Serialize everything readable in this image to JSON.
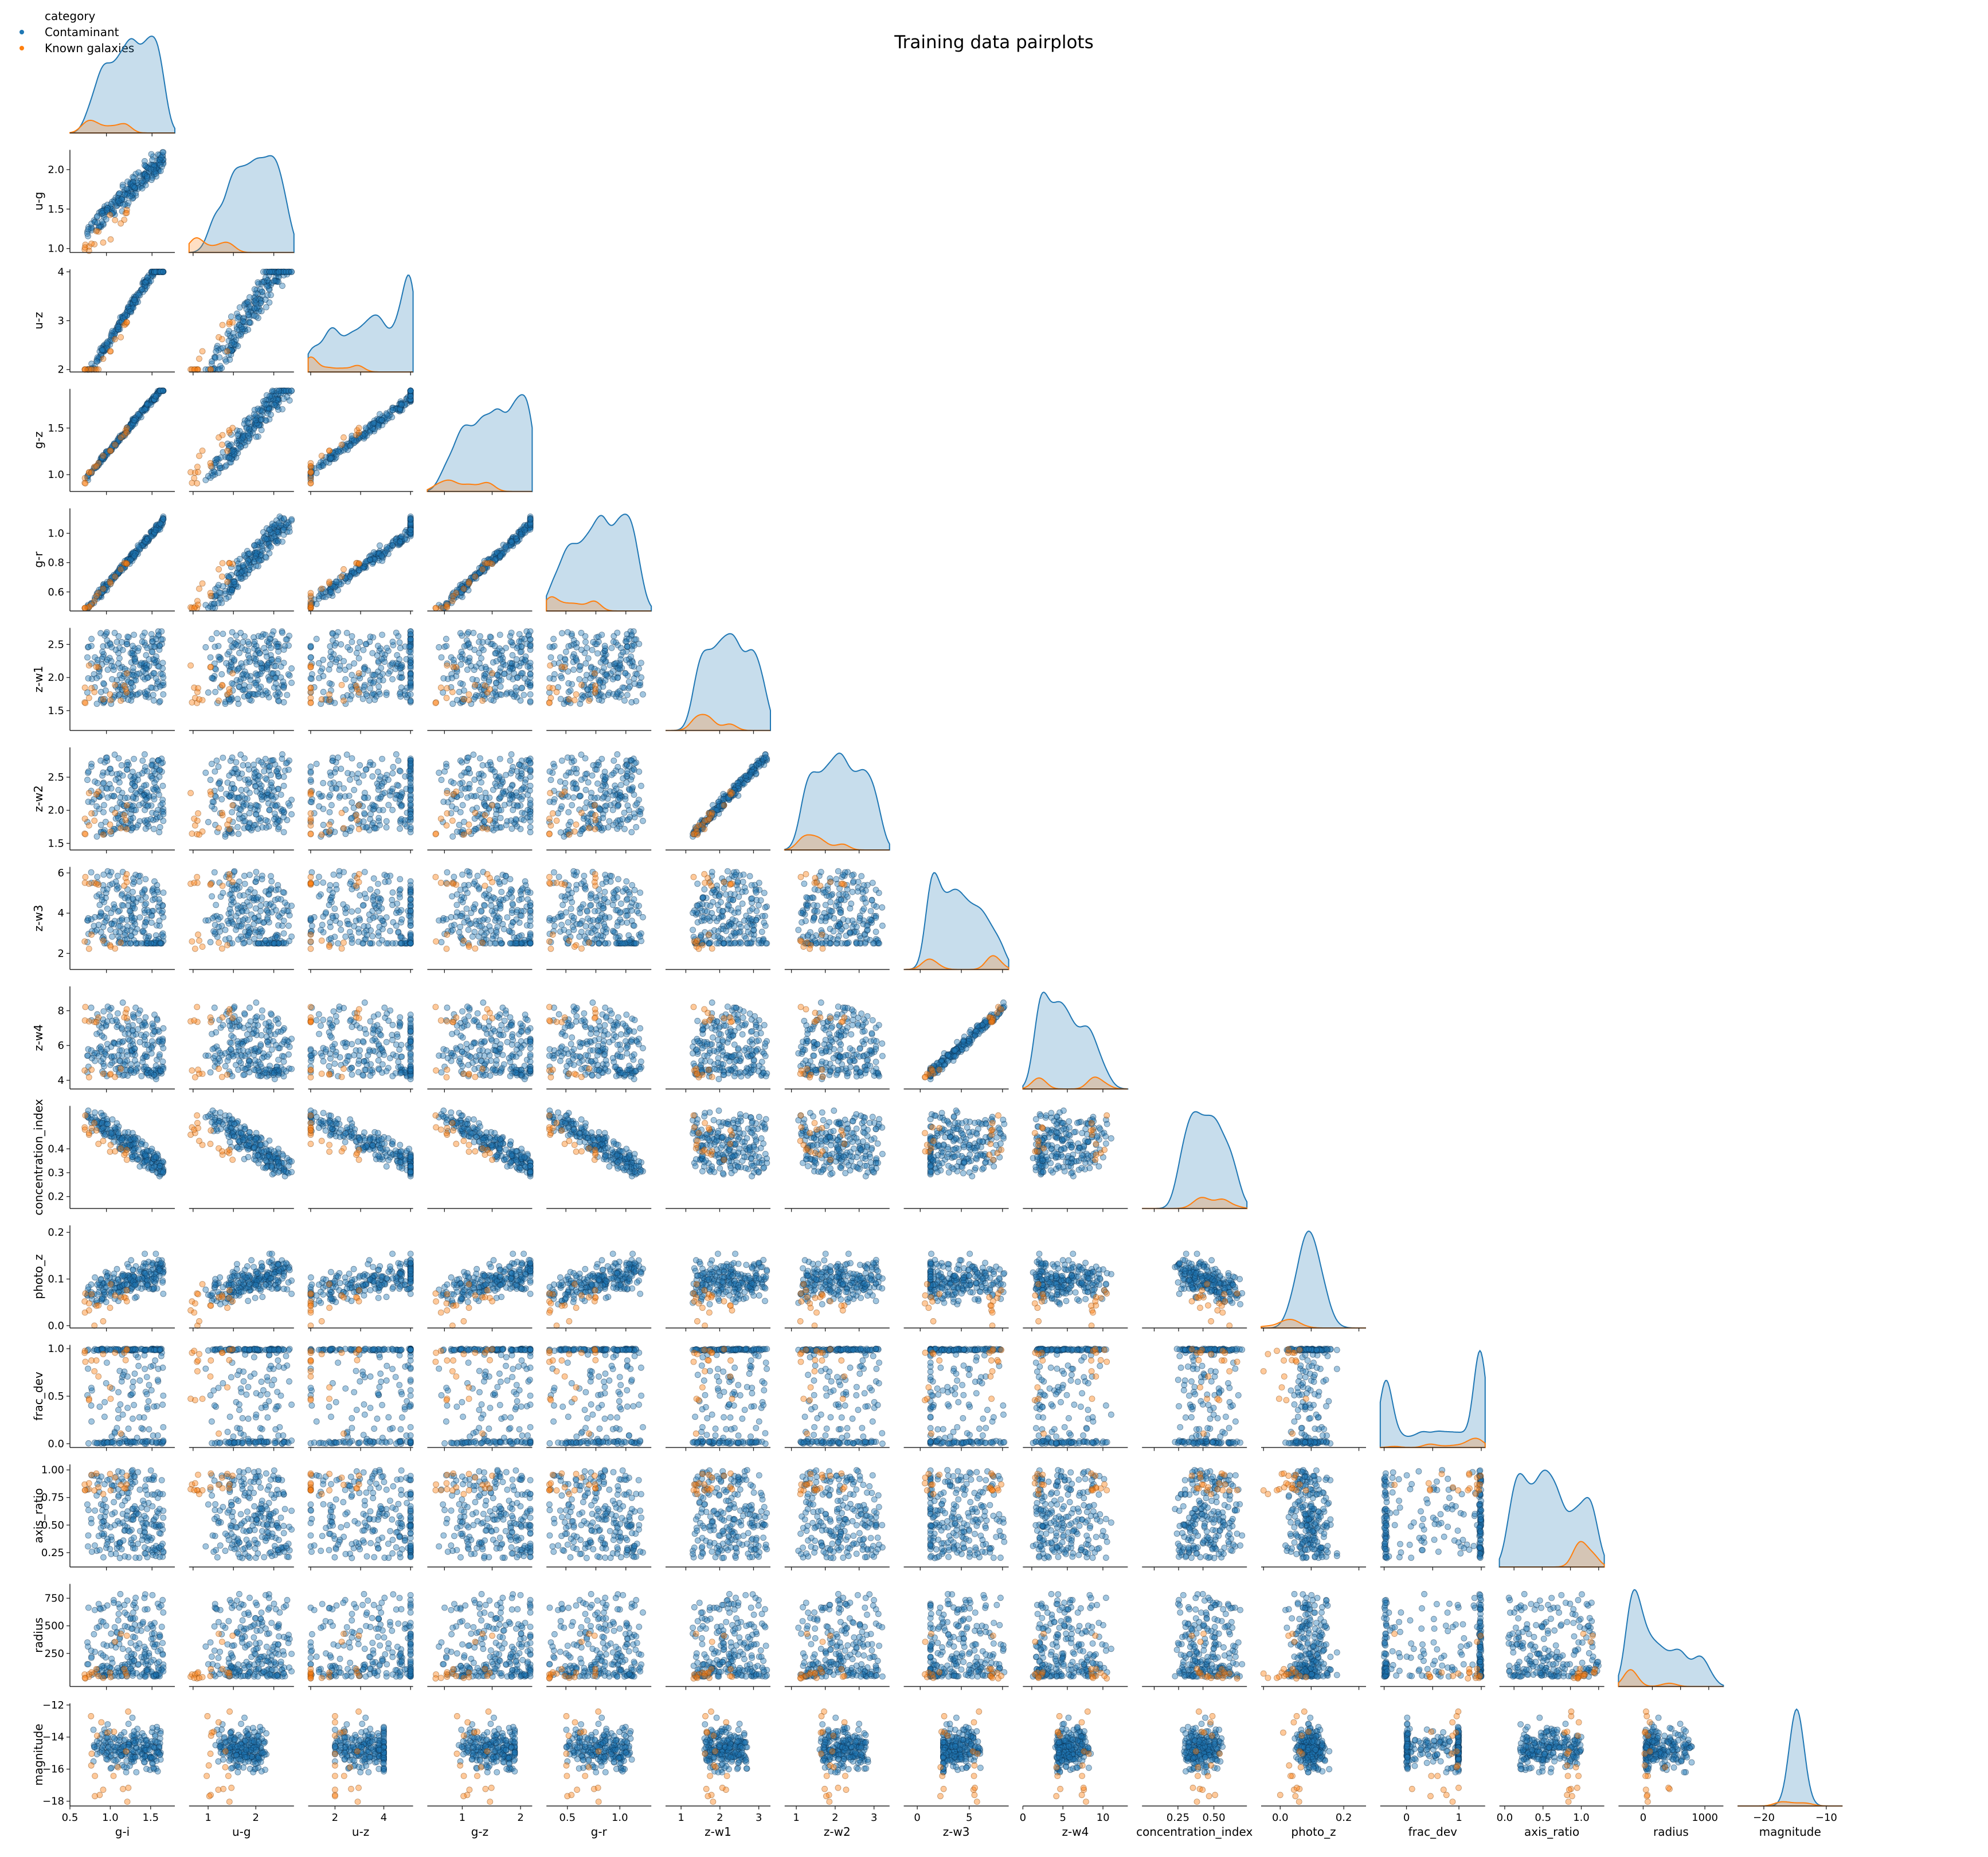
{
  "chart_data": {
    "type": "pairplot",
    "title": "Training data pairplots",
    "legend": {
      "title": "category",
      "placement": "top-left",
      "entries": [
        {
          "label": "Contaminant",
          "color": "#1f77b4"
        },
        {
          "label": "Known galaxies",
          "color": "#ff7f0e"
        }
      ]
    },
    "variables": [
      {
        "name": "g-i",
        "range": [
          0.6,
          1.75
        ],
        "ticks": [
          0.5,
          1.0,
          1.5
        ],
        "tick_labels": [
          "0.5",
          "1.0",
          "1.5"
        ]
      },
      {
        "name": "u-g",
        "range": [
          0.95,
          2.25
        ],
        "ticks": [
          1.0,
          1.5,
          2.0
        ],
        "tick_labels": [
          "1.0",
          "1.5",
          "2.0"
        ]
      },
      {
        "name": "u-z",
        "range": [
          1.95,
          4.05
        ],
        "ticks": [
          2,
          3,
          4
        ],
        "tick_labels": [
          "2",
          "3",
          "4"
        ]
      },
      {
        "name": "g-z",
        "range": [
          0.82,
          1.92
        ],
        "ticks": [
          1.0,
          1.5
        ],
        "tick_labels": [
          "1.0",
          "1.5"
        ]
      },
      {
        "name": "g-r",
        "range": [
          0.47,
          1.17
        ],
        "ticks": [
          0.6,
          0.8,
          1.0
        ],
        "tick_labels": [
          "0.6",
          "0.8",
          "1.0"
        ]
      },
      {
        "name": "z-w1",
        "range": [
          1.2,
          2.75
        ],
        "ticks": [
          1.5,
          2.0,
          2.5
        ],
        "tick_labels": [
          "1.5",
          "2.0",
          "2.5"
        ]
      },
      {
        "name": "z-w2",
        "range": [
          1.4,
          2.95
        ],
        "ticks": [
          1.5,
          2.0,
          2.5
        ],
        "tick_labels": [
          "1.5",
          "2.0",
          "2.5"
        ]
      },
      {
        "name": "z-w3",
        "range": [
          1.2,
          6.3
        ],
        "ticks": [
          2,
          4,
          6
        ],
        "tick_labels": [
          "2",
          "4",
          "6"
        ]
      },
      {
        "name": "z-w4",
        "range": [
          3.5,
          9.4
        ],
        "ticks": [
          4,
          6,
          8
        ],
        "tick_labels": [
          "4",
          "6",
          "8"
        ]
      },
      {
        "name": "concentration_index",
        "range": [
          0.15,
          0.58
        ],
        "ticks": [
          0.2,
          0.3,
          0.4
        ],
        "tick_labels": [
          "0.2",
          "0.3",
          "0.4"
        ]
      },
      {
        "name": "photo_z",
        "range": [
          -0.005,
          0.215
        ],
        "ticks": [
          0.0,
          0.1,
          0.2
        ],
        "tick_labels": [
          "0.0",
          "0.1",
          "0.2"
        ]
      },
      {
        "name": "frac_dev",
        "range": [
          -0.04,
          1.04
        ],
        "ticks": [
          0.0,
          0.5,
          1.0
        ],
        "tick_labels": [
          "0.0",
          "0.5",
          "1.0"
        ]
      },
      {
        "name": "axis_ratio",
        "range": [
          0.12,
          1.05
        ],
        "ticks": [
          0.25,
          0.5,
          0.75,
          1.0
        ],
        "tick_labels": [
          "0.25",
          "0.50",
          "0.75",
          "1.00"
        ]
      },
      {
        "name": "radius",
        "range": [
          -50,
          880
        ],
        "ticks": [
          250,
          500,
          750
        ],
        "tick_labels": [
          "250",
          "500",
          "750"
        ]
      },
      {
        "name": "magnitude",
        "range": [
          -18.3,
          -11.9
        ],
        "ticks": [
          -18,
          -16,
          -14,
          -12
        ],
        "tick_labels": [
          "−18",
          "−16",
          "−14",
          "−12"
        ]
      }
    ],
    "bottom_axes": [
      {
        "variable": "g-i",
        "range": [
          0.5,
          1.8
        ],
        "ticks": [
          0.5,
          1.0,
          1.5
        ],
        "tick_labels": [
          "0.5",
          "1.0",
          "1.5"
        ]
      },
      {
        "variable": "u-g",
        "range": [
          0.6,
          2.8
        ],
        "ticks": [
          1,
          2
        ],
        "tick_labels": [
          "1",
          "2"
        ]
      },
      {
        "variable": "u-z",
        "range": [
          0.9,
          5.2
        ],
        "ticks": [
          2,
          4
        ],
        "tick_labels": [
          "2",
          "4"
        ]
      },
      {
        "variable": "g-z",
        "range": [
          0.4,
          2.2
        ],
        "ticks": [
          1,
          2
        ],
        "tick_labels": [
          "1",
          "2"
        ]
      },
      {
        "variable": "g-r",
        "range": [
          0.3,
          1.3
        ],
        "ticks": [
          0.5,
          1.0
        ],
        "tick_labels": [
          "0.5",
          "1.0"
        ]
      },
      {
        "variable": "z-w1",
        "range": [
          0.6,
          3.3
        ],
        "ticks": [
          1,
          2,
          3
        ],
        "tick_labels": [
          "1",
          "2",
          "3"
        ]
      },
      {
        "variable": "z-w2",
        "range": [
          0.7,
          3.4
        ],
        "ticks": [
          1,
          2,
          3
        ],
        "tick_labels": [
          "1",
          "2",
          "3"
        ]
      },
      {
        "variable": "z-w3",
        "range": [
          -1.3,
          8.8
        ],
        "ticks": [
          0,
          5,
          10
        ],
        "tick_labels": [
          "0",
          "5",
          "10"
        ]
      },
      {
        "variable": "z-w4",
        "range": [
          0,
          13.1
        ],
        "ticks": [
          0,
          5,
          10
        ],
        "tick_labels": [
          "0",
          "5",
          "10"
        ]
      },
      {
        "variable": "concentration_index",
        "range": [
          0.0,
          0.73
        ],
        "ticks": [
          0.25,
          0.5
        ],
        "tick_labels": [
          "0.25",
          "0.50"
        ]
      },
      {
        "variable": "photo_z",
        "range": [
          -0.06,
          0.27
        ],
        "ticks": [
          0.0,
          0.2
        ],
        "tick_labels": [
          "0.0",
          "0.2"
        ]
      },
      {
        "variable": "frac_dev",
        "range": [
          -0.5,
          1.5
        ],
        "ticks": [
          0,
          1
        ],
        "tick_labels": [
          "0",
          "1"
        ]
      },
      {
        "variable": "axis_ratio",
        "range": [
          -0.07,
          1.3
        ],
        "ticks": [
          0.0,
          0.5,
          1.0
        ],
        "tick_labels": [
          "0.0",
          "0.5",
          "1.0"
        ]
      },
      {
        "variable": "radius",
        "range": [
          -400,
          1300
        ],
        "ticks": [
          0,
          1000
        ],
        "tick_labels": [
          "0",
          "1000"
        ]
      },
      {
        "variable": "magnitude",
        "range": [
          -24.2,
          -7.4
        ],
        "ticks": [
          -20,
          -10
        ],
        "tick_labels": [
          "−20",
          "−10"
        ]
      }
    ],
    "diagonal": "kde",
    "lower_triangle": "scatter",
    "upper_triangle": "empty",
    "series": [
      {
        "name": "Contaminant",
        "color": "#1f77b4",
        "n": 220
      },
      {
        "name": "Known galaxies",
        "color": "#ff7f0e",
        "n": 18
      }
    ]
  }
}
